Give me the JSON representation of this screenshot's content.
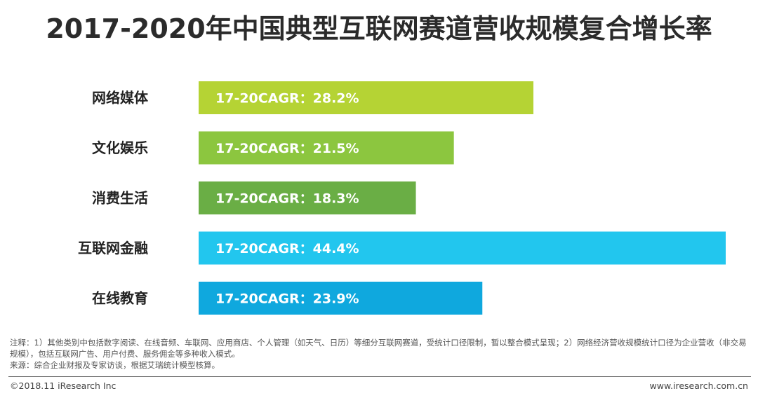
{
  "title": "2017-2020年中国典型互联网赛道营收规模复合增长率",
  "chart_data": {
    "type": "bar",
    "orientation": "horizontal",
    "categories": [
      "网络媒体",
      "文化娱乐",
      "消费生活",
      "互联网金融",
      "在线教育"
    ],
    "values": [
      28.2,
      21.5,
      18.3,
      44.4,
      23.9
    ],
    "unit": "%",
    "data_label_prefix": "17-20CAGR：",
    "colors": [
      "#b5d334",
      "#8cc63f",
      "#6aae45",
      "#22c6ee",
      "#0fa8de"
    ],
    "xlim": [
      0,
      44.4
    ],
    "grid": false,
    "legend": "none"
  },
  "notes": {
    "note": "注释：1）其他类别中包括数字阅读、在线音频、车联网、应用商店、个人管理（如天气、日历）等细分互联网赛道，受统计口径限制，暂以整合模式呈现；2）网络经济营收规模统计口径为企业营收（非交易规模），包括互联网广告、用户付费、服务佣金等多种收入模式。",
    "source": "来源：综合企业财报及专家访谈，根据艾瑞统计模型核算。"
  },
  "footer": {
    "copyright": "©2018.11 iResearch Inc",
    "website": "www.iresearch.com.cn"
  }
}
